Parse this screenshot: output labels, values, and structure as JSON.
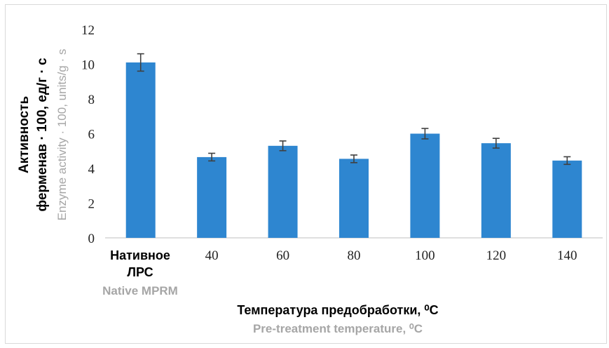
{
  "chart_data": {
    "type": "bar",
    "title": "",
    "ylabel": {
      "line1": "Активность",
      "line2": "ферменав · 100, ед/г · с",
      "english": "Enzyme activity · 100, units/g · s"
    },
    "xlabel": {
      "russian": "Температура предобработки, ⁰C",
      "english": "Pre-treatment temperature, ⁰C"
    },
    "categories": [
      "Нативное ЛРС",
      "40",
      "60",
      "80",
      "100",
      "120",
      "140"
    ],
    "category_first": {
      "line1": "Нативное",
      "line2": "ЛРС",
      "english": "Native MPRM"
    },
    "values": [
      10.1,
      4.65,
      5.3,
      4.55,
      6.0,
      5.45,
      4.45
    ],
    "errors": [
      0.5,
      0.22,
      0.28,
      0.22,
      0.3,
      0.28,
      0.22
    ],
    "ylim": [
      0,
      12
    ],
    "yticks": [
      0,
      2,
      4,
      6,
      8,
      10,
      12
    ],
    "grid": false,
    "legend": "none",
    "colors": {
      "bar": "#2e86d0",
      "error_bar": "#404040",
      "axis": "#bfbfbf",
      "secondary_text": "#a6a6a6"
    }
  }
}
